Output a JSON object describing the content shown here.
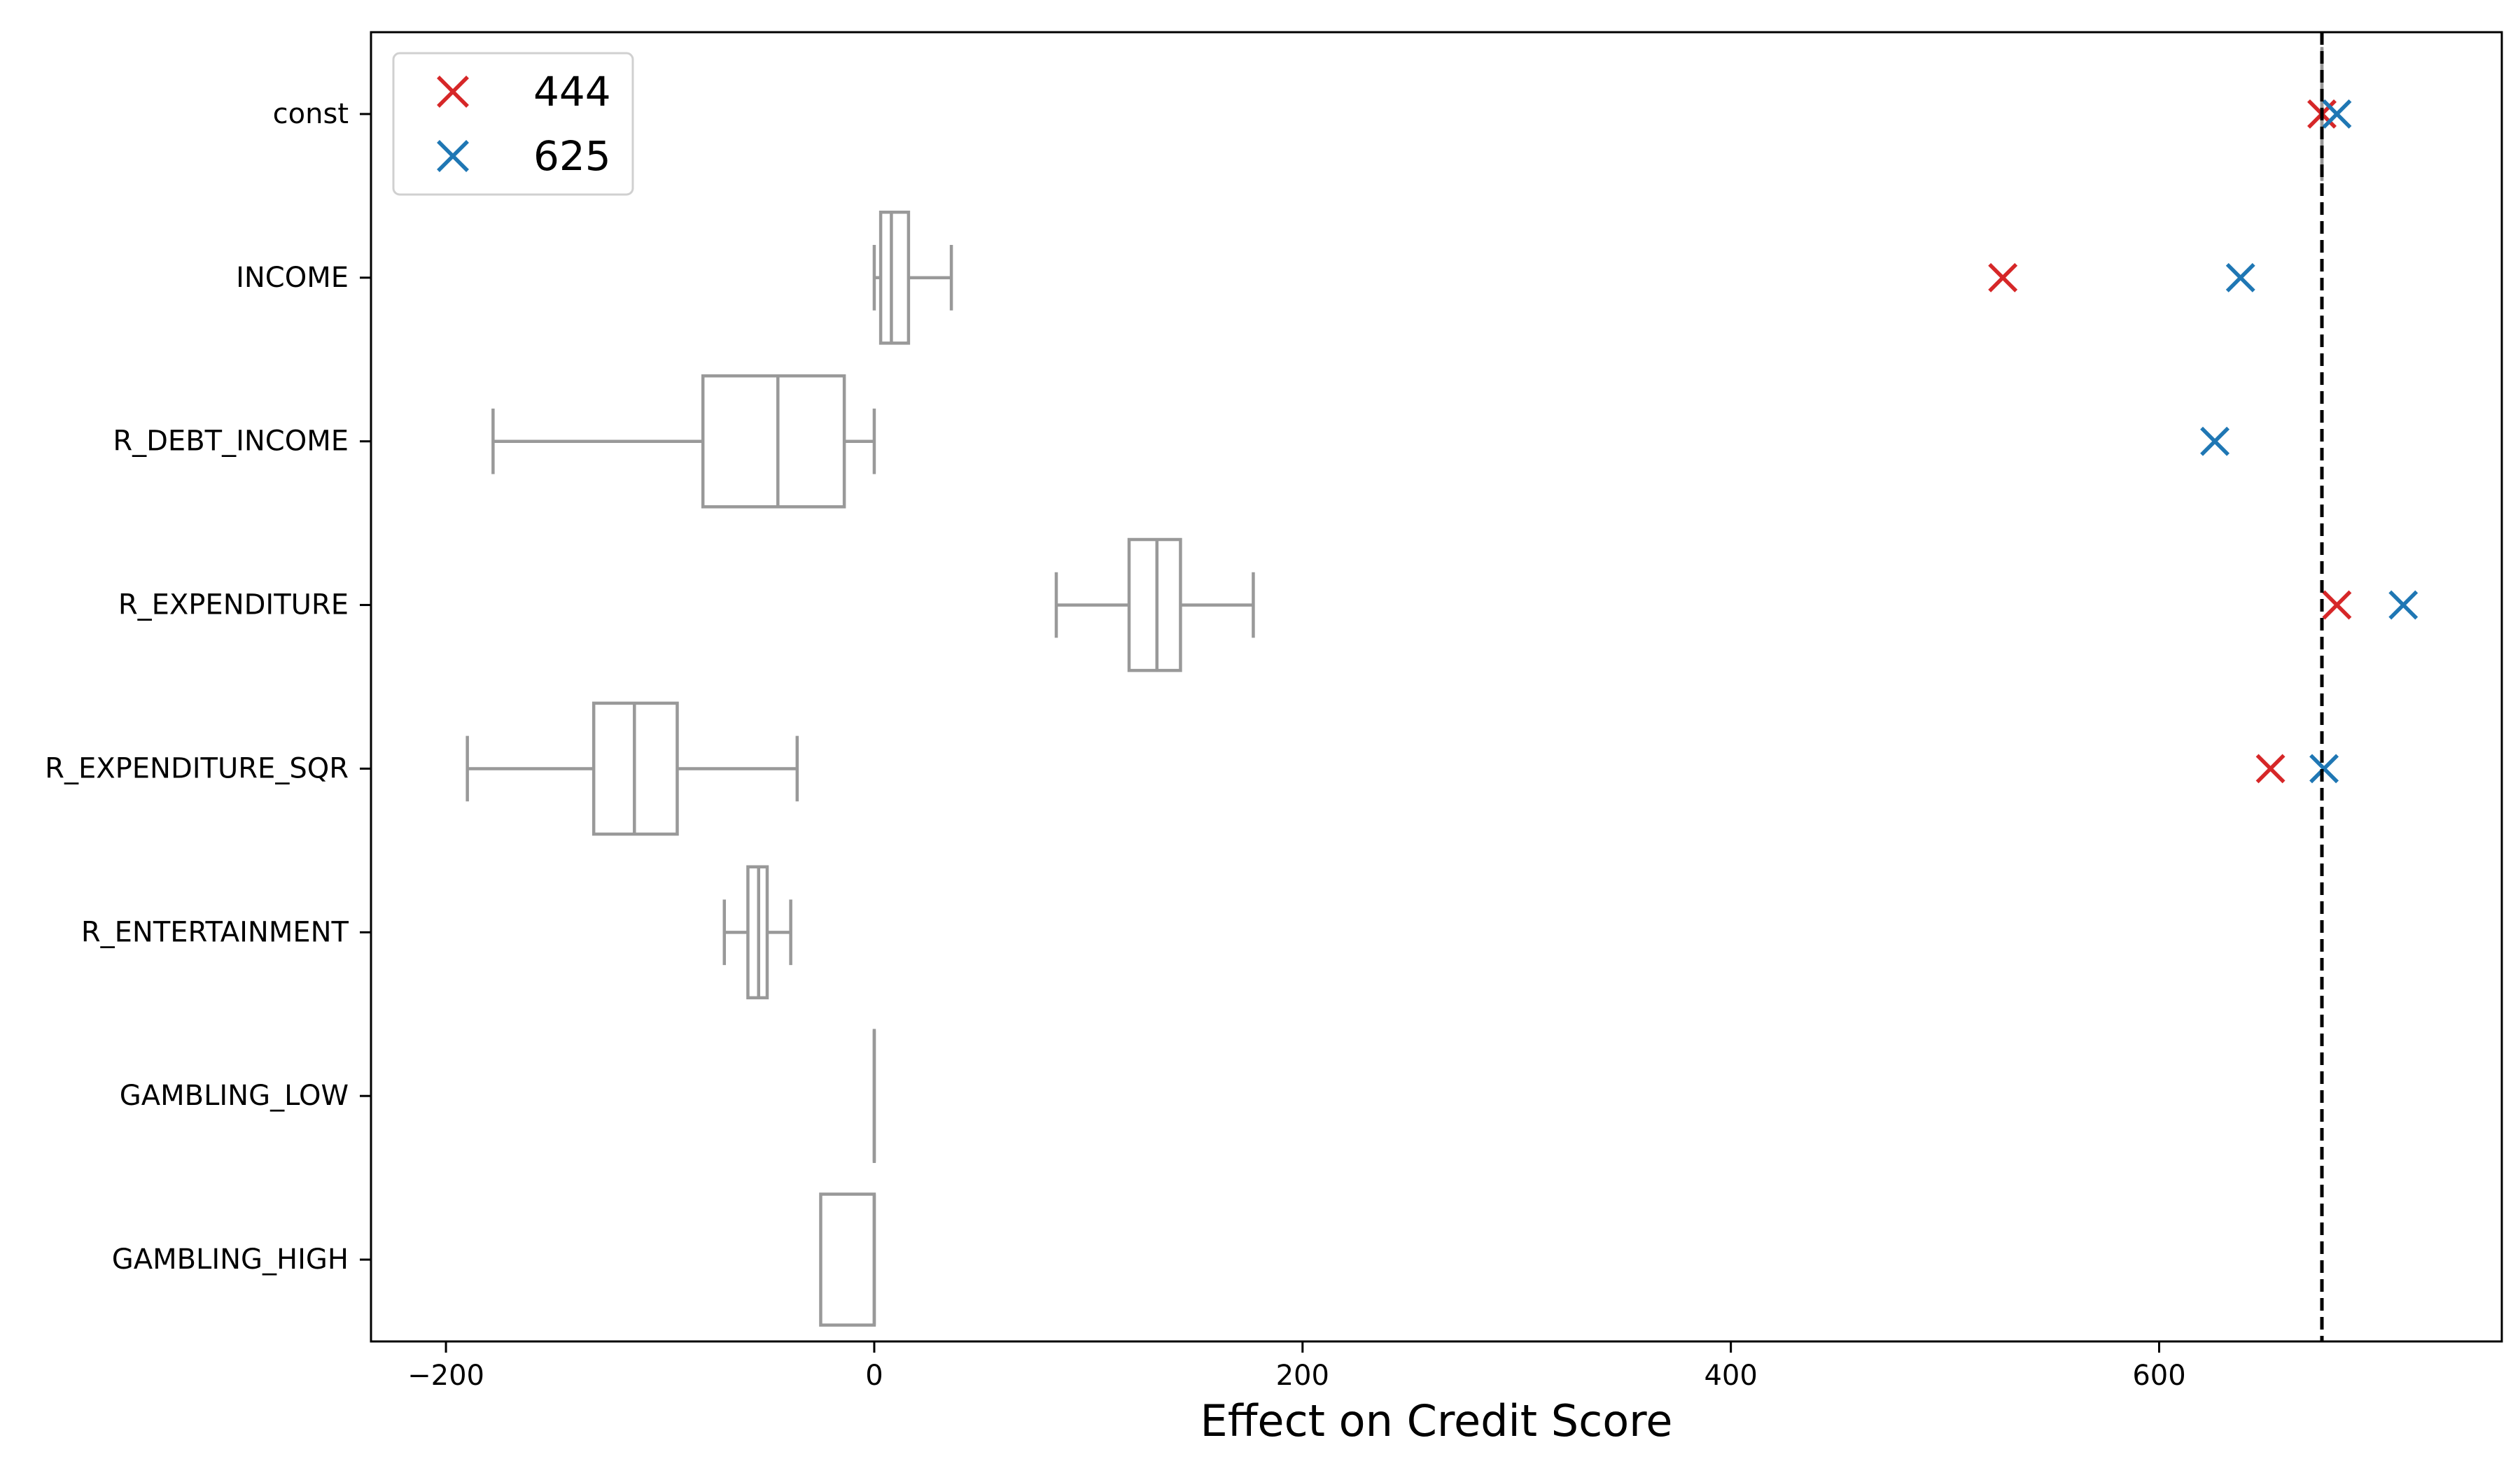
{
  "chart_data": {
    "type": "box",
    "xlabel": "Effect on Credit Score",
    "ylabel": "",
    "xlim": [
      -235,
      760
    ],
    "x_ticks": [
      -200,
      0,
      200,
      400,
      600
    ],
    "x_tick_labels": [
      "−200",
      "0",
      "200",
      "400",
      "600"
    ],
    "grid": false,
    "legend_position": "upper-left",
    "categories": [
      "const",
      "INCOME",
      "R_DEBT_INCOME",
      "R_EXPENDITURE",
      "R_EXPENDITURE_SQR",
      "R_ENTERTAINMENT",
      "GAMBLING_LOW",
      "GAMBLING_HIGH"
    ],
    "box_color": "#999999",
    "boxes": [
      {
        "category": "const",
        "whisker_low": 676,
        "q1": 676,
        "median": 676,
        "q3": 676,
        "whisker_high": 676
      },
      {
        "category": "INCOME",
        "whisker_low": 0,
        "q1": 3,
        "median": 8,
        "q3": 16,
        "whisker_high": 36
      },
      {
        "category": "R_DEBT_INCOME",
        "whisker_low": -178,
        "q1": -80,
        "median": -45,
        "q3": -14,
        "whisker_high": 0
      },
      {
        "category": "R_EXPENDITURE",
        "whisker_low": 85,
        "q1": 119,
        "median": 132,
        "q3": 143,
        "whisker_high": 177
      },
      {
        "category": "R_EXPENDITURE_SQR",
        "whisker_low": -190,
        "q1": -131,
        "median": -112,
        "q3": -92,
        "whisker_high": -36
      },
      {
        "category": "R_ENTERTAINMENT",
        "whisker_low": -70,
        "q1": -59,
        "median": -54,
        "q3": -50,
        "whisker_high": -39
      },
      {
        "category": "GAMBLING_LOW",
        "whisker_low": 0,
        "q1": 0,
        "median": 0,
        "q3": 0,
        "whisker_high": 0
      },
      {
        "category": "GAMBLING_HIGH",
        "whisker_low": -25,
        "q1": -25,
        "median": 0,
        "q3": 0,
        "whisker_high": 0
      }
    ],
    "reference_line": {
      "x": 676,
      "style": "dashed",
      "color": "#000000"
    },
    "series": [
      {
        "name": "444",
        "marker": "x",
        "color": "#d62728",
        "points": [
          {
            "category": "const",
            "x": 676
          },
          {
            "category": "INCOME",
            "x": 527
          },
          {
            "category": "R_EXPENDITURE",
            "x": 683
          },
          {
            "category": "R_EXPENDITURE_SQR",
            "x": 652
          }
        ]
      },
      {
        "name": "625",
        "marker": "x",
        "color": "#1f77b4",
        "points": [
          {
            "category": "const",
            "x": 683
          },
          {
            "category": "INCOME",
            "x": 638
          },
          {
            "category": "R_DEBT_INCOME",
            "x": 626
          },
          {
            "category": "R_EXPENDITURE",
            "x": 714
          },
          {
            "category": "R_EXPENDITURE_SQR",
            "x": 677
          }
        ]
      }
    ]
  }
}
